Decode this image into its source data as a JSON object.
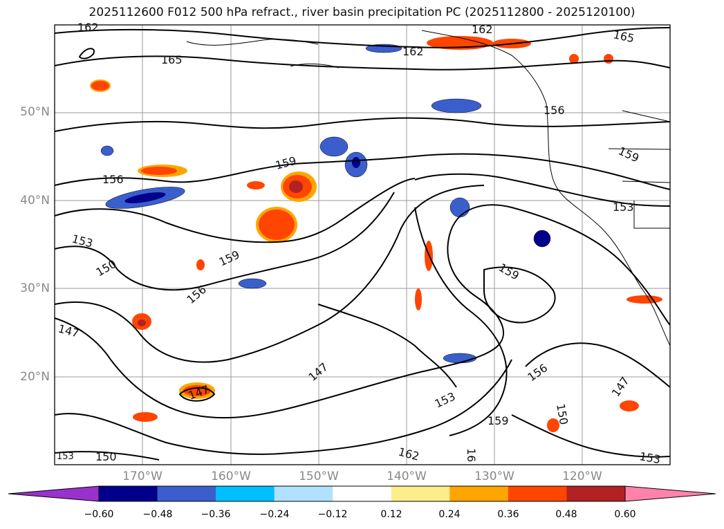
{
  "title": "2025112600 F012 500 hPa refract., river basin precipitation PC (2025112800 - 2025120100)",
  "lat_labels": [
    "50°N",
    "40°N",
    "30°N",
    "20°N"
  ],
  "lon_labels": [
    "170°W",
    "160°W",
    "150°W",
    "140°W",
    "130°W",
    "120°W"
  ],
  "contour_labels": [
    "162",
    "165",
    "162",
    "165",
    "162",
    "156",
    "159",
    "159",
    "156",
    "153",
    "153",
    "150",
    "159",
    "156",
    "159",
    "147",
    "147",
    "147",
    "156",
    "153",
    "159",
    "150",
    "162",
    "16",
    "147",
    "153",
    "150",
    "153"
  ],
  "colorbar": {
    "ticks": [
      "−0.60",
      "−0.48",
      "−0.36",
      "−0.24",
      "−0.12",
      "0.12",
      "0.24",
      "0.36",
      "0.48",
      "0.60"
    ],
    "colors": [
      "#9932cc",
      "#00008b",
      "#3a5fcd",
      "#00bfff",
      "#b0e2ff",
      "#ffffff",
      "#ffec8b",
      "#ffa500",
      "#ff4500",
      "#b22222",
      "#ff82ab"
    ]
  }
}
